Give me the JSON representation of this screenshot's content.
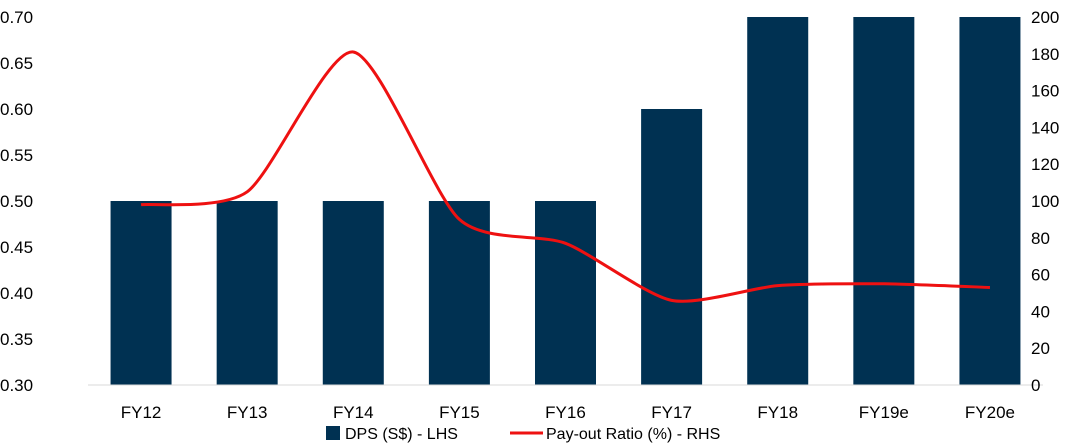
{
  "chart_data": {
    "type": "bar+line",
    "categories": [
      "FY12",
      "FY13",
      "FY14",
      "FY15",
      "FY16",
      "FY17",
      "FY18",
      "FY19e",
      "FY20e"
    ],
    "series": [
      {
        "name": "DPS (S$) - LHS",
        "type": "bar",
        "axis": "left",
        "color": "#003152",
        "values": [
          0.5,
          0.5,
          0.5,
          0.5,
          0.5,
          0.6,
          0.7,
          0.7,
          0.7
        ]
      },
      {
        "name": "Pay-out Ratio (%) - RHS",
        "type": "line",
        "axis": "right",
        "color": "#ee1111",
        "values": [
          98,
          105,
          181,
          90,
          77,
          46,
          54,
          55,
          53
        ]
      }
    ],
    "y_left": {
      "min": 0.3,
      "max": 0.7,
      "step": 0.05,
      "tick_labels": [
        "0.30",
        "0.35",
        "0.40",
        "0.45",
        "0.50",
        "0.55",
        "0.60",
        "0.65",
        "0.70"
      ]
    },
    "y_right": {
      "min": 0,
      "max": 200,
      "step": 20,
      "tick_labels": [
        "0",
        "20",
        "40",
        "60",
        "80",
        "100",
        "120",
        "140",
        "160",
        "180",
        "200"
      ]
    },
    "grid": false,
    "legend_position": "bottom"
  }
}
